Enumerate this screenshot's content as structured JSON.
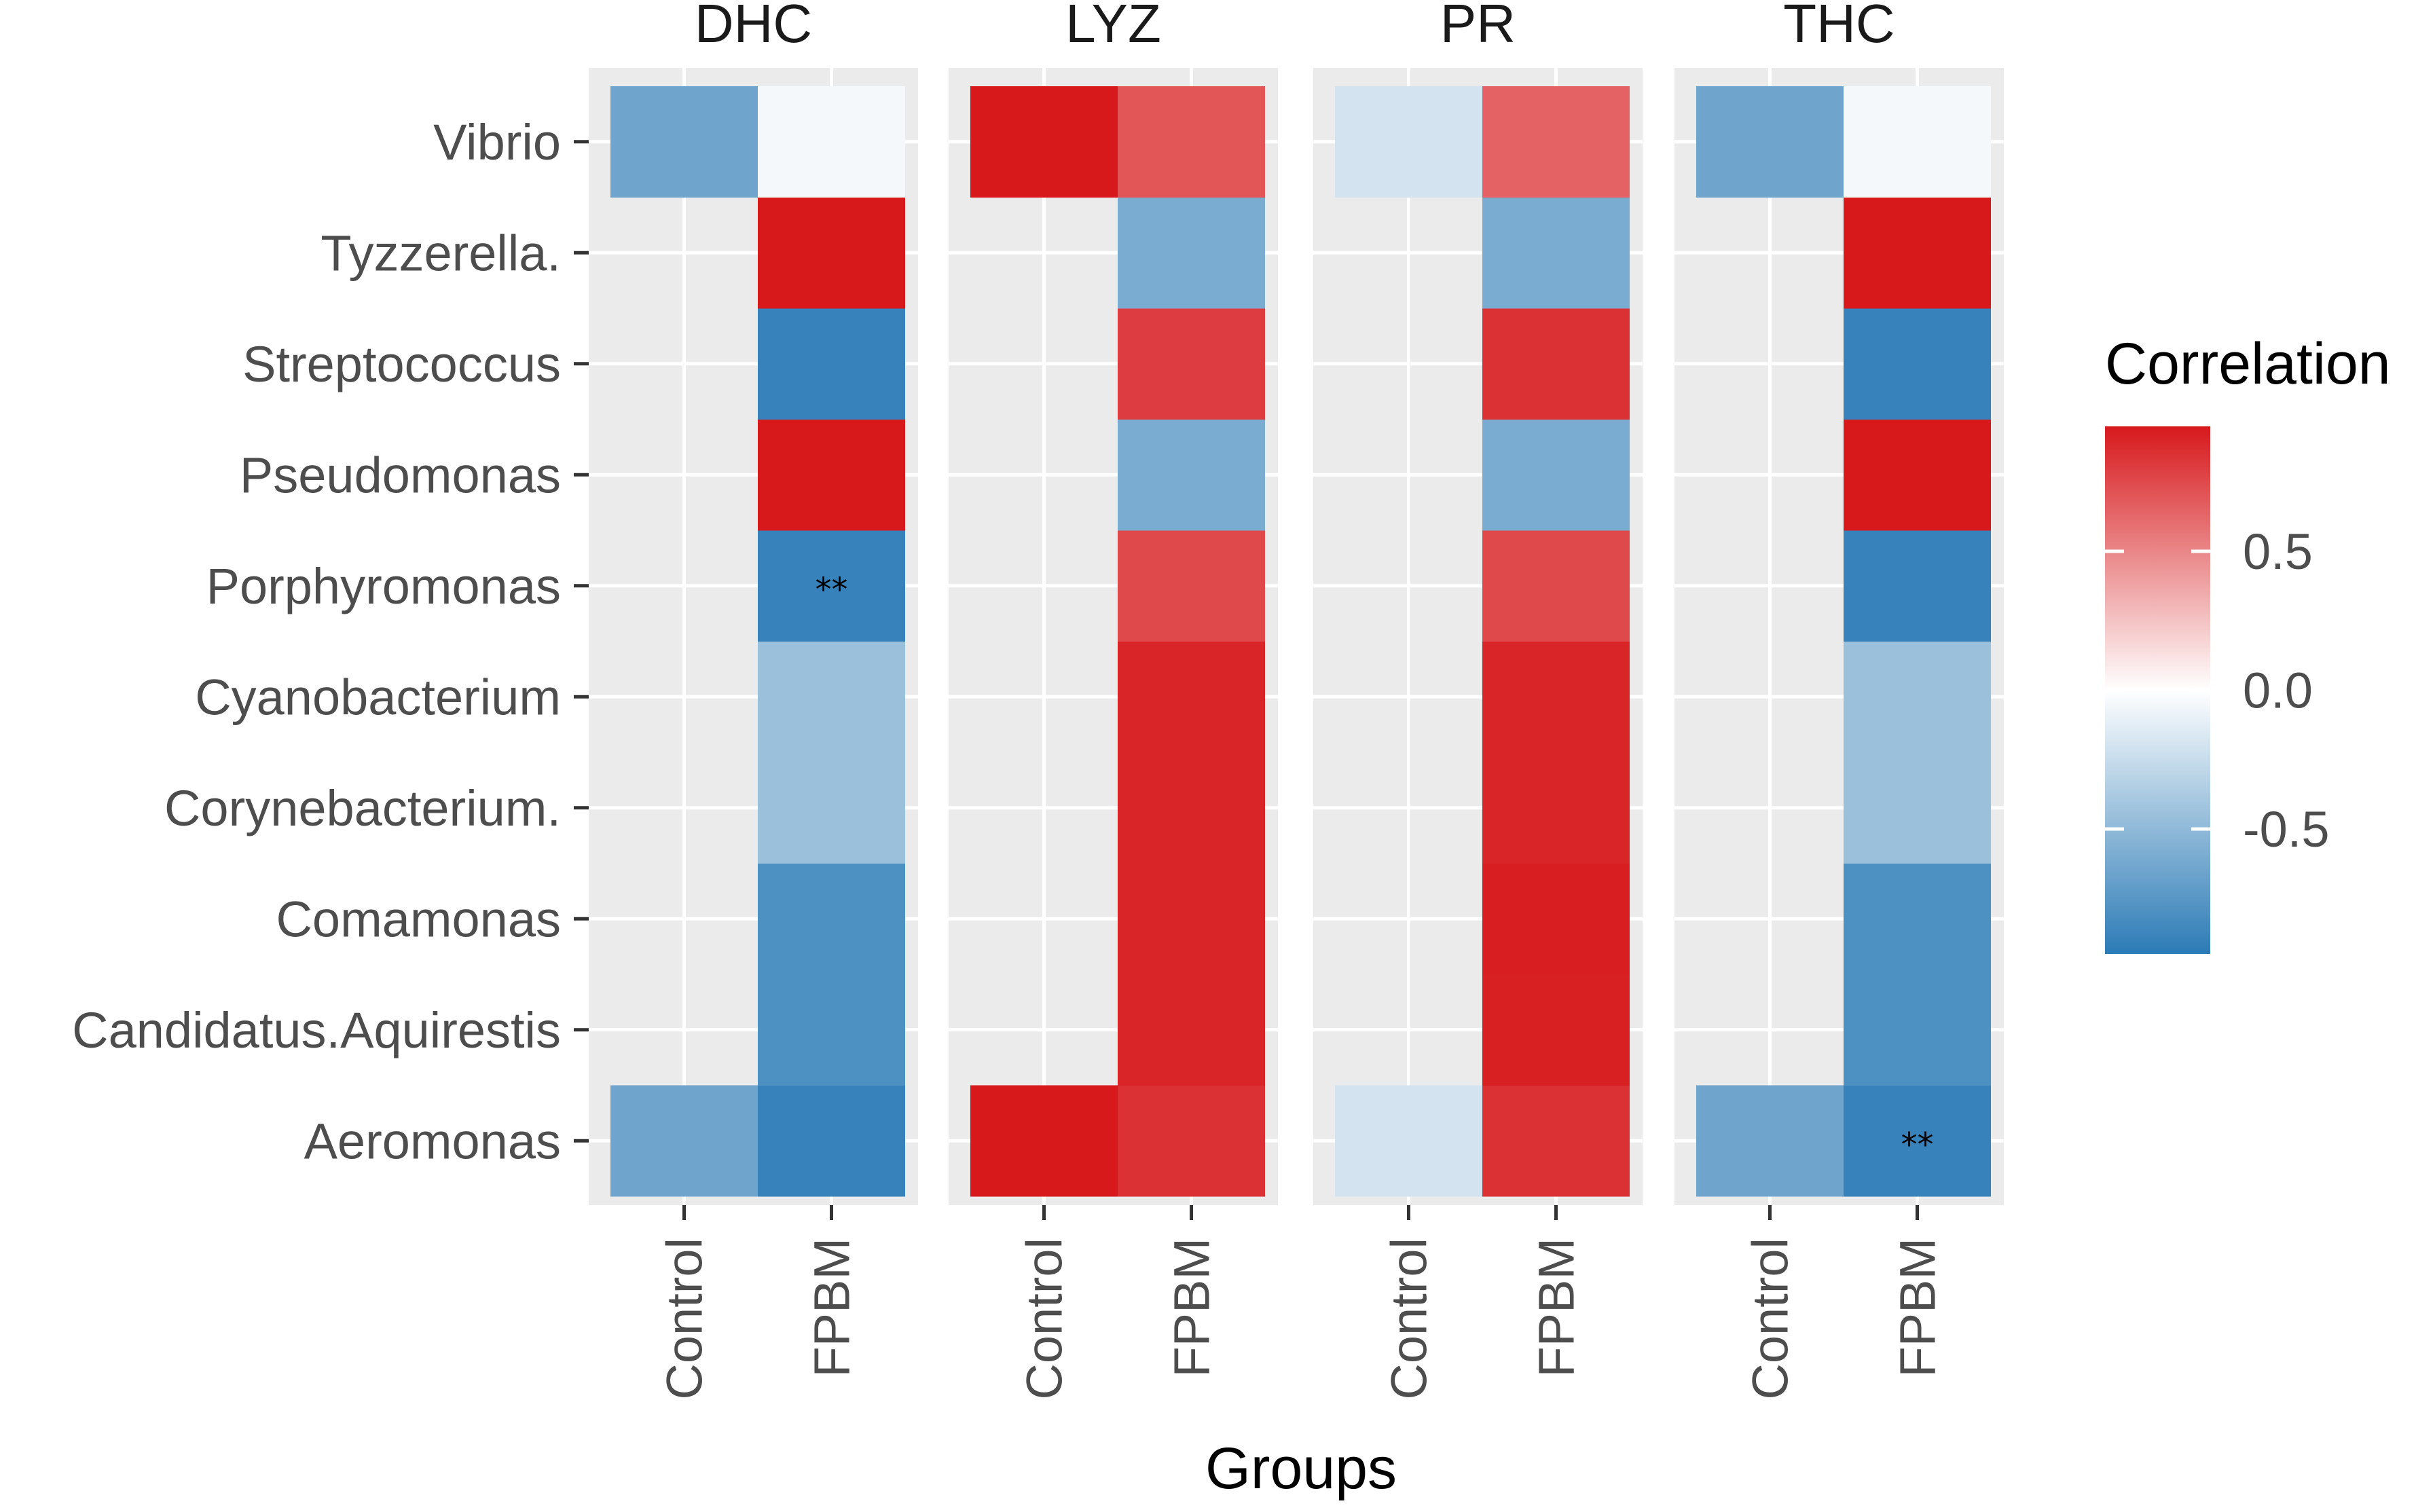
{
  "chart_data": {
    "type": "heatmap",
    "xlabel": "Groups",
    "legend": {
      "title": "Correlation",
      "position": "right",
      "ticks": [
        0.5,
        0.0,
        -0.5
      ],
      "tick_labels": [
        "0.5",
        "0.0",
        "-0.5"
      ],
      "range": [
        -0.95,
        0.95
      ],
      "low_color": "#2c7bb6",
      "mid_color": "#ffffff",
      "high_color": "#d7191c"
    },
    "colors": {
      "panel_bg": "#ebebeb",
      "grid": "#ffffff",
      "tick": "#333333"
    },
    "rows": [
      "Aeromonas",
      "Candidatus.Aquirestis",
      "Comamonas",
      "Corynebacterium.",
      "Cyanobacterium",
      "Porphyromonas",
      "Pseudomonas",
      "Streptococcus",
      "Tyzzerella.",
      "Vibrio"
    ],
    "groups": [
      "Control",
      "FPBM"
    ],
    "facets": [
      {
        "name": "DHC",
        "Control": [
          -0.65,
          null,
          null,
          null,
          null,
          null,
          null,
          null,
          null,
          -0.65
        ],
        "FPBM": [
          -0.9,
          -0.8,
          -0.8,
          -0.45,
          -0.45,
          -0.9,
          0.95,
          -0.9,
          0.95,
          -0.05
        ],
        "sig_Control": [
          "",
          "",
          "",
          "",
          "",
          "",
          "",
          "",
          "",
          ""
        ],
        "sig_FPBM": [
          "",
          "",
          "",
          "",
          "",
          "**",
          "",
          "",
          "",
          ""
        ]
      },
      {
        "name": "LYZ",
        "Control": [
          0.95,
          null,
          null,
          null,
          null,
          null,
          null,
          null,
          null,
          0.95
        ],
        "FPBM": [
          0.85,
          0.9,
          0.9,
          0.9,
          0.9,
          0.75,
          -0.6,
          0.8,
          -0.6,
          0.7
        ],
        "sig_Control": [
          "",
          "",
          "",
          "",
          "",
          "",
          "",
          "",
          "",
          ""
        ],
        "sig_FPBM": [
          "",
          "",
          "",
          "",
          "",
          "",
          "",
          "",
          "",
          ""
        ]
      },
      {
        "name": "PR",
        "Control": [
          -0.2,
          null,
          null,
          null,
          null,
          null,
          null,
          null,
          null,
          -0.2
        ],
        "FPBM": [
          0.85,
          0.92,
          0.93,
          0.9,
          0.9,
          0.75,
          -0.6,
          0.85,
          -0.6,
          0.65
        ],
        "sig_Control": [
          "",
          "",
          "",
          "",
          "",
          "",
          "",
          "",
          "",
          ""
        ],
        "sig_FPBM": [
          "",
          "",
          "",
          "",
          "",
          "",
          "",
          "",
          "",
          ""
        ]
      },
      {
        "name": "THC",
        "Control": [
          -0.65,
          null,
          null,
          null,
          null,
          null,
          null,
          null,
          null,
          -0.65
        ],
        "FPBM": [
          -0.9,
          -0.8,
          -0.8,
          -0.45,
          -0.45,
          -0.9,
          0.95,
          -0.9,
          0.95,
          -0.05
        ],
        "sig_Control": [
          "",
          "",
          "",
          "",
          "",
          "",
          "",
          "",
          "",
          ""
        ],
        "sig_FPBM": [
          "**",
          "",
          "",
          "",
          "",
          "",
          "",
          "",
          "",
          ""
        ]
      }
    ]
  }
}
